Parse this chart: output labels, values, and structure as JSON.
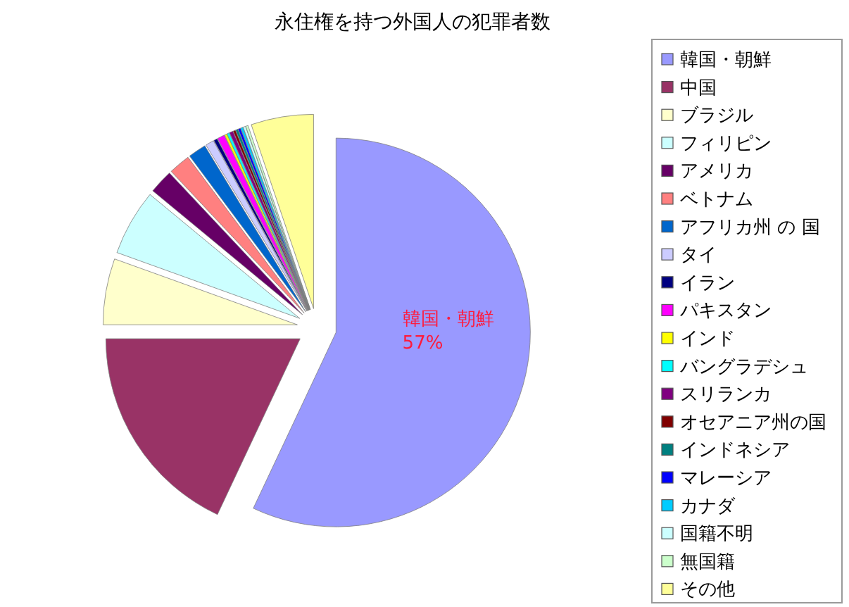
{
  "chart_data": {
    "type": "pie",
    "title": "永住権を持つ外国人の犯罪者数",
    "categories": [
      "韓国・朝鮮",
      "中国",
      "ブラジル",
      "フィリピン",
      "アメリカ",
      "ベトナム",
      "アフリカ州 の 国",
      "タイ",
      "イラン",
      "パキスタン",
      "インド",
      "バングラデシュ",
      "スリランカ",
      "オセアニア州の国",
      "インドネシア",
      "マレーシア",
      "カナダ",
      "国籍不明",
      "無国籍",
      "その他"
    ],
    "values": [
      57,
      18,
      5.5,
      5.5,
      2,
      1.8,
      1.5,
      0.7,
      0.3,
      0.6,
      0.2,
      0.2,
      0.3,
      0.2,
      0.2,
      0.2,
      0.2,
      0.2,
      0.2,
      5.2
    ],
    "colors": [
      "#9999ff",
      "#993366",
      "#ffffcc",
      "#ccffff",
      "#660066",
      "#ff8080",
      "#0066cc",
      "#ccccff",
      "#000080",
      "#ff00ff",
      "#ffff00",
      "#00ffff",
      "#800080",
      "#800000",
      "#008080",
      "#0000ff",
      "#00ccff",
      "#ccffff",
      "#ccffcc",
      "#ffff99"
    ],
    "value_labels": [
      "57%",
      null,
      null,
      null,
      null,
      null,
      null,
      null,
      null,
      null,
      null,
      null,
      null,
      null,
      null,
      null,
      null,
      null,
      null,
      null
    ],
    "legend": "right"
  }
}
